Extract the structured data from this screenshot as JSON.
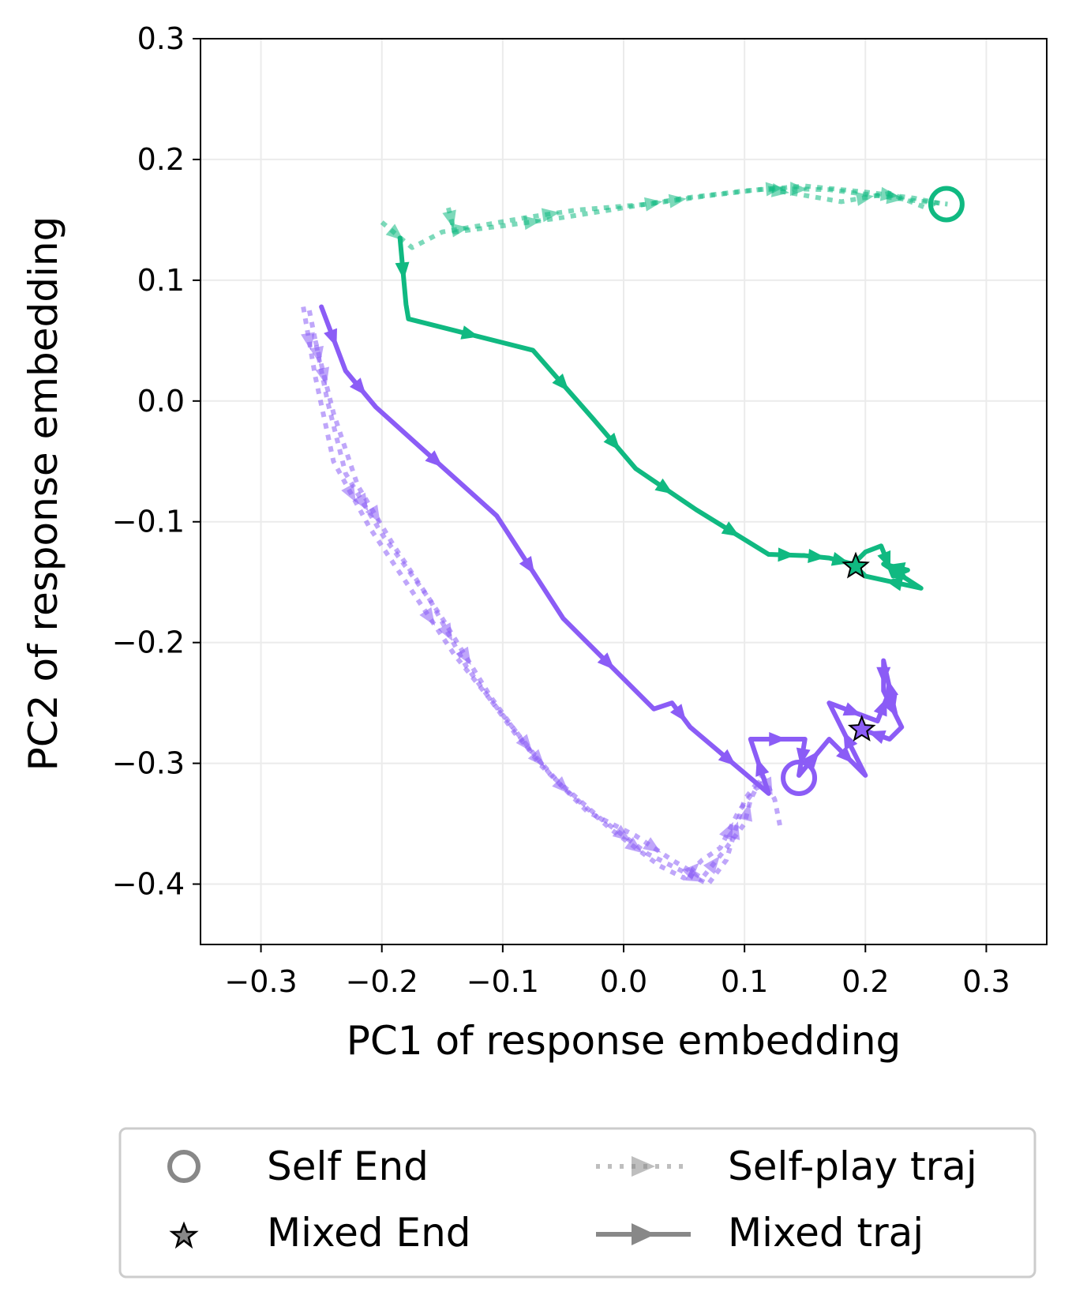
{
  "chart_data": {
    "type": "line",
    "title": "",
    "xlabel": "PC1 of response embedding",
    "ylabel": "PC2 of response embedding",
    "xlim": [
      -0.35,
      0.35
    ],
    "ylim": [
      -0.45,
      0.3
    ],
    "xticks": [
      -0.3,
      -0.2,
      -0.1,
      0.0,
      0.1,
      0.2,
      0.3
    ],
    "xtick_labels": [
      "−0.3",
      "−0.2",
      "−0.1",
      "0.0",
      "0.1",
      "0.2",
      "0.3"
    ],
    "yticks": [
      0.3,
      0.2,
      0.1,
      0.0,
      -0.1,
      -0.2,
      -0.3,
      -0.4
    ],
    "ytick_labels": [
      "0.3",
      "0.2",
      "0.1",
      "0.0",
      "−0.1",
      "−0.2",
      "−0.3",
      "−0.4"
    ],
    "grid": true,
    "legend_position": "bottom",
    "colors": {
      "green": "#10b981",
      "purple": "#8b5cf6",
      "legend_gray": "#888888"
    },
    "legend": [
      {
        "label": "Self End",
        "marker": "circle"
      },
      {
        "label": "Mixed End",
        "marker": "star"
      },
      {
        "label": "Self-play traj",
        "marker": "dotted-arrow"
      },
      {
        "label": "Mixed traj",
        "marker": "solid-arrow"
      }
    ],
    "series": [
      {
        "color": "green",
        "style": "dotted",
        "alpha": 0.55,
        "points": [
          [
            -0.2,
            0.148
          ],
          [
            -0.175,
            0.127
          ],
          [
            -0.15,
            0.14
          ],
          [
            -0.12,
            0.145
          ],
          [
            -0.08,
            0.152
          ],
          [
            -0.04,
            0.158
          ],
          [
            0.02,
            0.163
          ],
          [
            0.07,
            0.17
          ],
          [
            0.12,
            0.176
          ],
          [
            0.17,
            0.175
          ],
          [
            0.21,
            0.17
          ],
          [
            0.24,
            0.166
          ],
          [
            0.26,
            0.164
          ],
          [
            0.268,
            0.163
          ]
        ]
      },
      {
        "color": "green",
        "style": "dotted",
        "alpha": 0.55,
        "points": [
          [
            -0.145,
            0.16
          ],
          [
            -0.14,
            0.14
          ],
          [
            -0.1,
            0.145
          ],
          [
            -0.05,
            0.152
          ],
          [
            0.0,
            0.16
          ],
          [
            0.05,
            0.168
          ],
          [
            0.1,
            0.174
          ],
          [
            0.15,
            0.178
          ],
          [
            0.2,
            0.173
          ],
          [
            0.24,
            0.168
          ],
          [
            0.265,
            0.163
          ]
        ]
      },
      {
        "color": "green",
        "style": "dotted",
        "alpha": 0.55,
        "points": [
          [
            0.12,
            0.175
          ],
          [
            0.14,
            0.172
          ],
          [
            0.18,
            0.165
          ],
          [
            0.22,
            0.172
          ],
          [
            0.25,
            0.16
          ],
          [
            0.26,
            0.165
          ]
        ]
      },
      {
        "color": "purple",
        "style": "dotted",
        "alpha": 0.55,
        "points": [
          [
            -0.265,
            0.078
          ],
          [
            -0.255,
            0.02
          ],
          [
            -0.24,
            -0.05
          ],
          [
            -0.21,
            -0.105
          ],
          [
            -0.18,
            -0.15
          ],
          [
            -0.14,
            -0.21
          ],
          [
            -0.1,
            -0.26
          ],
          [
            -0.06,
            -0.31
          ],
          [
            -0.02,
            -0.345
          ],
          [
            0.02,
            -0.375
          ],
          [
            0.05,
            -0.39
          ],
          [
            0.07,
            -0.4
          ],
          [
            0.085,
            -0.38
          ],
          [
            0.1,
            -0.33
          ],
          [
            0.115,
            -0.31
          ]
        ]
      },
      {
        "color": "purple",
        "style": "dotted",
        "alpha": 0.55,
        "points": [
          [
            -0.26,
            0.075
          ],
          [
            -0.245,
            0.0
          ],
          [
            -0.23,
            -0.06
          ],
          [
            -0.2,
            -0.11
          ],
          [
            -0.16,
            -0.165
          ],
          [
            -0.13,
            -0.22
          ],
          [
            -0.09,
            -0.275
          ],
          [
            -0.05,
            -0.32
          ],
          [
            -0.01,
            -0.355
          ],
          [
            0.03,
            -0.385
          ],
          [
            0.05,
            -0.395
          ],
          [
            0.065,
            -0.38
          ],
          [
            0.08,
            -0.37
          ],
          [
            0.095,
            -0.34
          ],
          [
            0.11,
            -0.32
          ],
          [
            0.12,
            -0.32
          ]
        ]
      },
      {
        "color": "purple",
        "style": "dotted",
        "alpha": 0.55,
        "points": [
          [
            -0.255,
            0.05
          ],
          [
            -0.24,
            -0.01
          ],
          [
            -0.22,
            -0.07
          ],
          [
            -0.19,
            -0.12
          ],
          [
            -0.15,
            -0.18
          ],
          [
            -0.11,
            -0.245
          ],
          [
            -0.07,
            -0.3
          ],
          [
            -0.03,
            -0.34
          ],
          [
            0.01,
            -0.36
          ],
          [
            0.04,
            -0.38
          ],
          [
            0.065,
            -0.395
          ],
          [
            0.085,
            -0.37
          ],
          [
            0.1,
            -0.35
          ],
          [
            0.105,
            -0.33
          ],
          [
            0.115,
            -0.31
          ],
          [
            0.125,
            -0.33
          ],
          [
            0.13,
            -0.355
          ]
        ]
      },
      {
        "color": "green",
        "style": "solid",
        "alpha": 1.0,
        "points": [
          [
            -0.185,
            0.135
          ],
          [
            -0.18,
            0.08
          ],
          [
            -0.178,
            0.068
          ],
          [
            -0.075,
            0.042
          ],
          [
            -0.025,
            -0.015
          ],
          [
            0.01,
            -0.056
          ],
          [
            0.06,
            -0.09
          ],
          [
            0.12,
            -0.127
          ],
          [
            0.15,
            -0.128
          ],
          [
            0.17,
            -0.13
          ],
          [
            0.19,
            -0.135
          ],
          [
            0.2,
            -0.125
          ],
          [
            0.213,
            -0.12
          ],
          [
            0.223,
            -0.145
          ],
          [
            0.235,
            -0.14
          ],
          [
            0.215,
            -0.135
          ],
          [
            0.246,
            -0.155
          ],
          [
            0.2,
            -0.145
          ],
          [
            0.192,
            -0.137
          ]
        ]
      },
      {
        "color": "purple",
        "style": "solid",
        "alpha": 1.0,
        "points": [
          [
            -0.25,
            0.078
          ],
          [
            -0.23,
            0.025
          ],
          [
            -0.205,
            -0.005
          ],
          [
            -0.105,
            -0.095
          ],
          [
            -0.05,
            -0.18
          ],
          [
            0.025,
            -0.255
          ],
          [
            0.04,
            -0.25
          ],
          [
            0.055,
            -0.27
          ],
          [
            0.12,
            -0.325
          ],
          [
            0.105,
            -0.28
          ],
          [
            0.15,
            -0.28
          ],
          [
            0.145,
            -0.31
          ],
          [
            0.17,
            -0.28
          ],
          [
            0.2,
            -0.31
          ],
          [
            0.17,
            -0.25
          ],
          [
            0.21,
            -0.265
          ],
          [
            0.22,
            -0.24
          ],
          [
            0.225,
            -0.26
          ],
          [
            0.215,
            -0.215
          ],
          [
            0.215,
            -0.24
          ],
          [
            0.23,
            -0.27
          ],
          [
            0.22,
            -0.28
          ],
          [
            0.197,
            -0.272
          ]
        ]
      }
    ],
    "self_end_points": [
      {
        "color": "green",
        "x": 0.267,
        "y": 0.163
      },
      {
        "color": "purple",
        "x": 0.145,
        "y": -0.312
      }
    ],
    "mixed_end_points": [
      {
        "color": "green",
        "x": 0.192,
        "y": -0.137
      },
      {
        "color": "purple",
        "x": 0.197,
        "y": -0.272
      }
    ]
  }
}
